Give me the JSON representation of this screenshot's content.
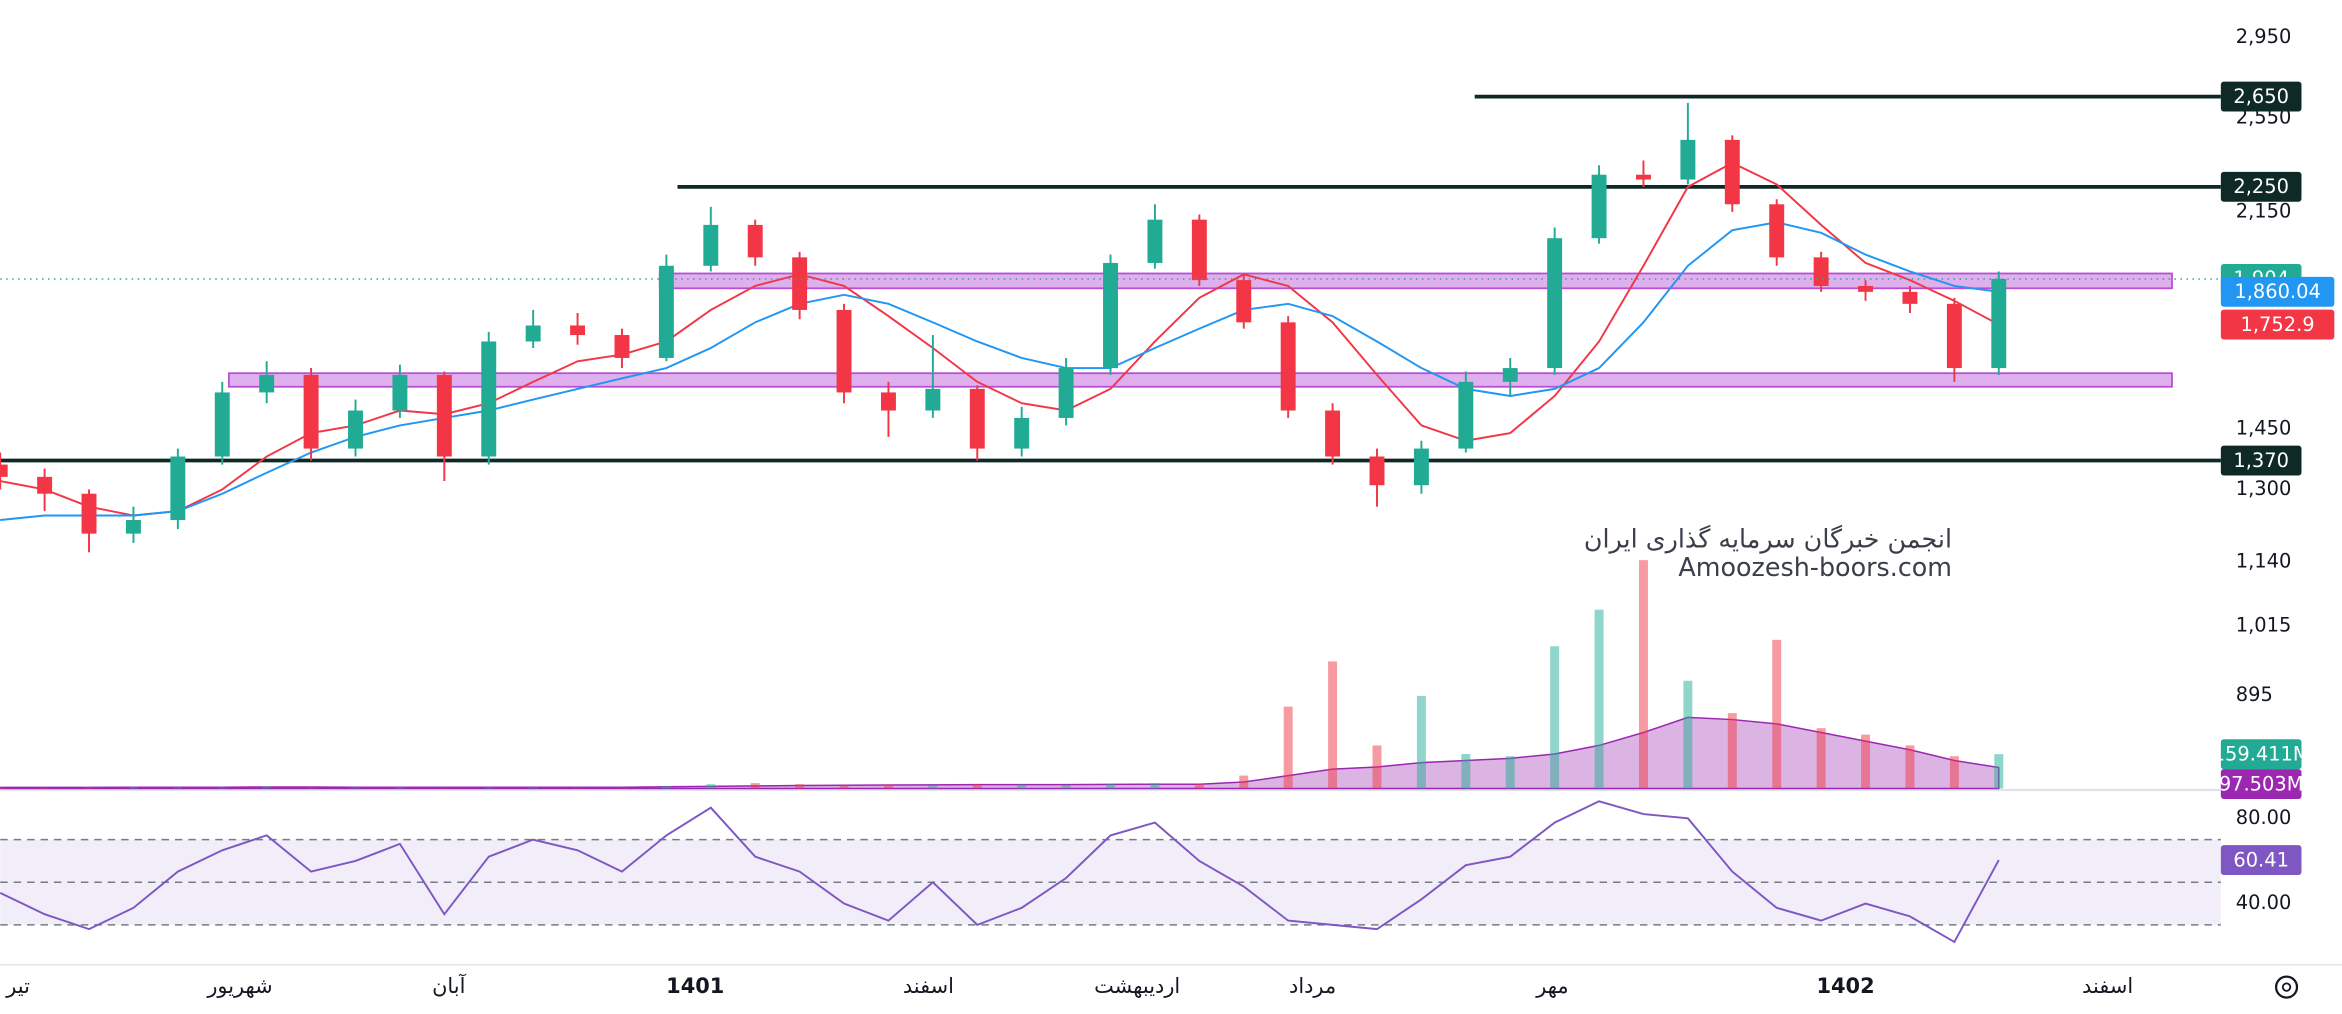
{
  "chart_data": {
    "type": "candlestick",
    "log_scale": true,
    "xlim": [
      0,
      100
    ],
    "ylim": [
      756,
      3157
    ],
    "x": [
      0,
      2,
      4,
      6,
      8,
      10,
      12,
      14,
      16,
      18,
      20,
      22,
      24,
      26,
      28,
      30,
      32,
      34,
      36,
      38,
      40,
      42,
      44,
      46,
      48,
      50,
      52,
      54,
      56,
      58,
      60,
      62,
      64,
      66,
      68,
      70,
      72,
      74,
      76,
      78,
      80,
      82,
      84,
      86,
      88,
      90
    ],
    "xticks": [
      {
        "value": 0.3,
        "label": "تیر"
      },
      {
        "value": 10.8,
        "label": "شهریور"
      },
      {
        "value": 20.2,
        "label": "آبان"
      },
      {
        "value": 31.3,
        "label": "1401"
      },
      {
        "value": 41.8,
        "label": "اسفند"
      },
      {
        "value": 51.2,
        "label": "اردیبهشت"
      },
      {
        "value": 59.1,
        "label": "مرداد"
      },
      {
        "value": 69.9,
        "label": "مهر"
      },
      {
        "value": 83.1,
        "label": "1402"
      },
      {
        "value": 94.9,
        "label": "اسفند"
      }
    ],
    "yticks": [
      {
        "value": 2950,
        "label": "2,950"
      },
      {
        "value": 2550,
        "label": "2,550"
      },
      {
        "value": 2150,
        "label": "2,150"
      },
      {
        "value": 1450,
        "label": "1,450"
      },
      {
        "value": 1300,
        "label": "1,300"
      },
      {
        "value": 1140,
        "label": "1,140"
      },
      {
        "value": 1015,
        "label": "1,015"
      },
      {
        "value": 895,
        "label": "895"
      }
    ],
    "up_color": "#22ab94",
    "down_color": "#f23645",
    "price": {
      "open": [
        1360,
        1330,
        1290,
        1200,
        1230,
        1380,
        1550,
        1600,
        1400,
        1500,
        1600,
        1380,
        1700,
        1750,
        1720,
        1650,
        1950,
        2100,
        1980,
        1800,
        1550,
        1500,
        1560,
        1400,
        1480,
        1620,
        1960,
        2120,
        1900,
        1760,
        1500,
        1380,
        1310,
        1400,
        1580,
        1620,
        2050,
        2300,
        2280,
        2450,
        2180,
        1980,
        1880,
        1860,
        1820,
        1620
      ],
      "high": [
        1390,
        1350,
        1300,
        1260,
        1400,
        1580,
        1640,
        1620,
        1530,
        1630,
        1610,
        1730,
        1800,
        1790,
        1740,
        1990,
        2170,
        2120,
        2000,
        1820,
        1580,
        1720,
        1570,
        1510,
        1650,
        1990,
        2180,
        2140,
        1920,
        1780,
        1520,
        1400,
        1420,
        1610,
        1650,
        2090,
        2340,
        2360,
        2620,
        2470,
        2200,
        2000,
        1900,
        1880,
        1840,
        1930
      ],
      "low": [
        1300,
        1250,
        1160,
        1180,
        1210,
        1360,
        1520,
        1370,
        1380,
        1480,
        1320,
        1360,
        1680,
        1690,
        1620,
        1640,
        1930,
        1950,
        1770,
        1520,
        1430,
        1480,
        1370,
        1380,
        1460,
        1600,
        1940,
        1880,
        1740,
        1480,
        1360,
        1260,
        1290,
        1390,
        1540,
        1600,
        2030,
        2250,
        2260,
        2150,
        1950,
        1860,
        1830,
        1790,
        1580,
        1600
      ],
      "close": [
        1330,
        1290,
        1200,
        1230,
        1380,
        1550,
        1600,
        1400,
        1500,
        1600,
        1380,
        1700,
        1750,
        1720,
        1650,
        1950,
        2100,
        1980,
        1800,
        1550,
        1500,
        1560,
        1400,
        1480,
        1620,
        1960,
        2120,
        1900,
        1760,
        1500,
        1380,
        1310,
        1400,
        1580,
        1620,
        2050,
        2300,
        2280,
        2450,
        2180,
        1980,
        1880,
        1860,
        1820,
        1620,
        1904
      ],
      "last_value_label": "1,904"
    },
    "moving_averages": [
      {
        "color": "#f23645",
        "values": [
          1320,
          1300,
          1260,
          1240,
          1250,
          1300,
          1380,
          1440,
          1460,
          1500,
          1490,
          1520,
          1580,
          1640,
          1660,
          1700,
          1800,
          1880,
          1920,
          1880,
          1780,
          1680,
          1580,
          1520,
          1500,
          1560,
          1700,
          1840,
          1920,
          1880,
          1760,
          1600,
          1460,
          1420,
          1440,
          1540,
          1700,
          1950,
          2250,
          2350,
          2260,
          2100,
          1960,
          1900,
          1830,
          1752.9
        ],
        "last_value_label": "1,752.9"
      },
      {
        "color": "#2196f3",
        "values": [
          1230,
          1240,
          1240,
          1240,
          1250,
          1290,
          1340,
          1390,
          1430,
          1460,
          1480,
          1500,
          1530,
          1560,
          1590,
          1620,
          1680,
          1760,
          1820,
          1850,
          1820,
          1760,
          1700,
          1650,
          1620,
          1620,
          1680,
          1740,
          1800,
          1820,
          1780,
          1700,
          1620,
          1560,
          1540,
          1560,
          1620,
          1760,
          1950,
          2080,
          2110,
          2070,
          1990,
          1930,
          1880,
          1860.04
        ],
        "last_value_label": "1,860.04"
      }
    ],
    "levels": [
      {
        "value": 2650,
        "label": "2,650",
        "x_start": 66.4
      },
      {
        "value": 2250,
        "label": "2,250",
        "x_start": 30.5
      },
      {
        "value": 1370,
        "label": "1,370",
        "x_start": 0
      }
    ],
    "level_color": "#0f2a26",
    "zones": [
      {
        "low": 1872,
        "high": 1923,
        "x_start": 29.7,
        "x_end": 97.8
      },
      {
        "low": 1566,
        "high": 1605,
        "x_start": 10.3,
        "x_end": 97.8
      }
    ],
    "zone_color": "#b84fd6",
    "volume": {
      "vlim": [
        0,
        3660
      ],
      "values": [
        5,
        5,
        6,
        8,
        6,
        5,
        10,
        5,
        5,
        6,
        5,
        5,
        6,
        5,
        5,
        12,
        20,
        25,
        20,
        15,
        18,
        15,
        20,
        18,
        15,
        20,
        25,
        22,
        60,
        380,
        590,
        200,
        430,
        160,
        150,
        660,
        830,
        1060,
        500,
        350,
        690,
        280,
        250,
        200,
        150,
        159.411
      ],
      "last_value_label": "159.411M"
    },
    "volume_ma": {
      "color": "#9c27b0",
      "values": [
        5,
        5,
        5,
        6,
        6,
        6,
        7,
        7,
        6,
        6,
        6,
        6,
        6,
        6,
        6,
        8,
        10,
        12,
        14,
        15,
        16,
        17,
        18,
        18,
        18,
        19,
        20,
        20,
        30,
        60,
        90,
        100,
        120,
        130,
        140,
        160,
        200,
        260,
        330,
        320,
        300,
        260,
        220,
        180,
        130,
        97.503
      ],
      "last_value_label": "97.503M"
    },
    "rsi": {
      "color": "#7e57c2",
      "ylim": [
        12,
        92.6
      ],
      "yticks": [
        {
          "value": 80,
          "label": "80.00"
        },
        {
          "value": 40,
          "label": "40.00"
        }
      ],
      "bands": [
        30,
        50,
        70
      ],
      "values": [
        45,
        35,
        28,
        38,
        55,
        65,
        72,
        55,
        60,
        68,
        35,
        62,
        70,
        65,
        55,
        72,
        85,
        62,
        55,
        40,
        32,
        50,
        30,
        38,
        52,
        72,
        78,
        60,
        48,
        32,
        30,
        28,
        42,
        58,
        62,
        78,
        88,
        82,
        80,
        55,
        38,
        32,
        40,
        34,
        22,
        60.41
      ],
      "last_value_label": "60.41"
    },
    "watermark": [
      "انجمن خبرگان سرمایه گذاری ایران",
      "Amoozesh-boors.com"
    ]
  }
}
